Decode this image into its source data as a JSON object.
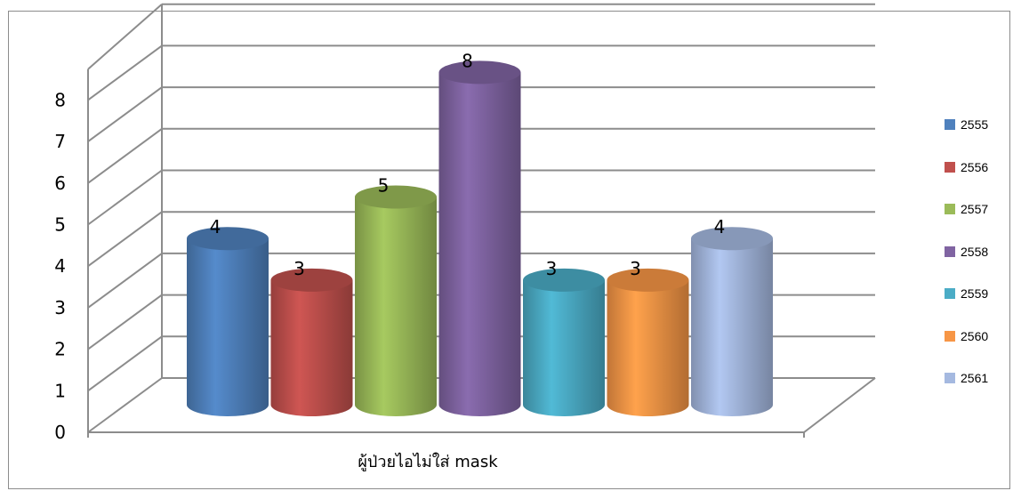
{
  "chart_data": {
    "type": "bar",
    "categories": [
      "ผู้ป่วยไอไม่ใส่ mask"
    ],
    "series": [
      {
        "name": "2555",
        "values": [
          4
        ],
        "color": "#4F81BD"
      },
      {
        "name": "2556",
        "values": [
          3
        ],
        "color": "#C0504D"
      },
      {
        "name": "2557",
        "values": [
          5
        ],
        "color": "#9BBB59"
      },
      {
        "name": "2558",
        "values": [
          8
        ],
        "color": "#8064A2"
      },
      {
        "name": "2559",
        "values": [
          3
        ],
        "color": "#4BACC6"
      },
      {
        "name": "2560",
        "values": [
          3
        ],
        "color": "#F79646"
      },
      {
        "name": "2561",
        "values": [
          4
        ],
        "color": "#A5B9E0"
      }
    ],
    "ylim": [
      0,
      8
    ],
    "yticks": [
      "0",
      "1",
      "2",
      "3",
      "4",
      "5",
      "6",
      "7",
      "8"
    ],
    "xlabel": "ผู้ป่วยไอไม่ใส่ mask",
    "grid": true,
    "legend": "right",
    "style": "3d-cylinder"
  }
}
